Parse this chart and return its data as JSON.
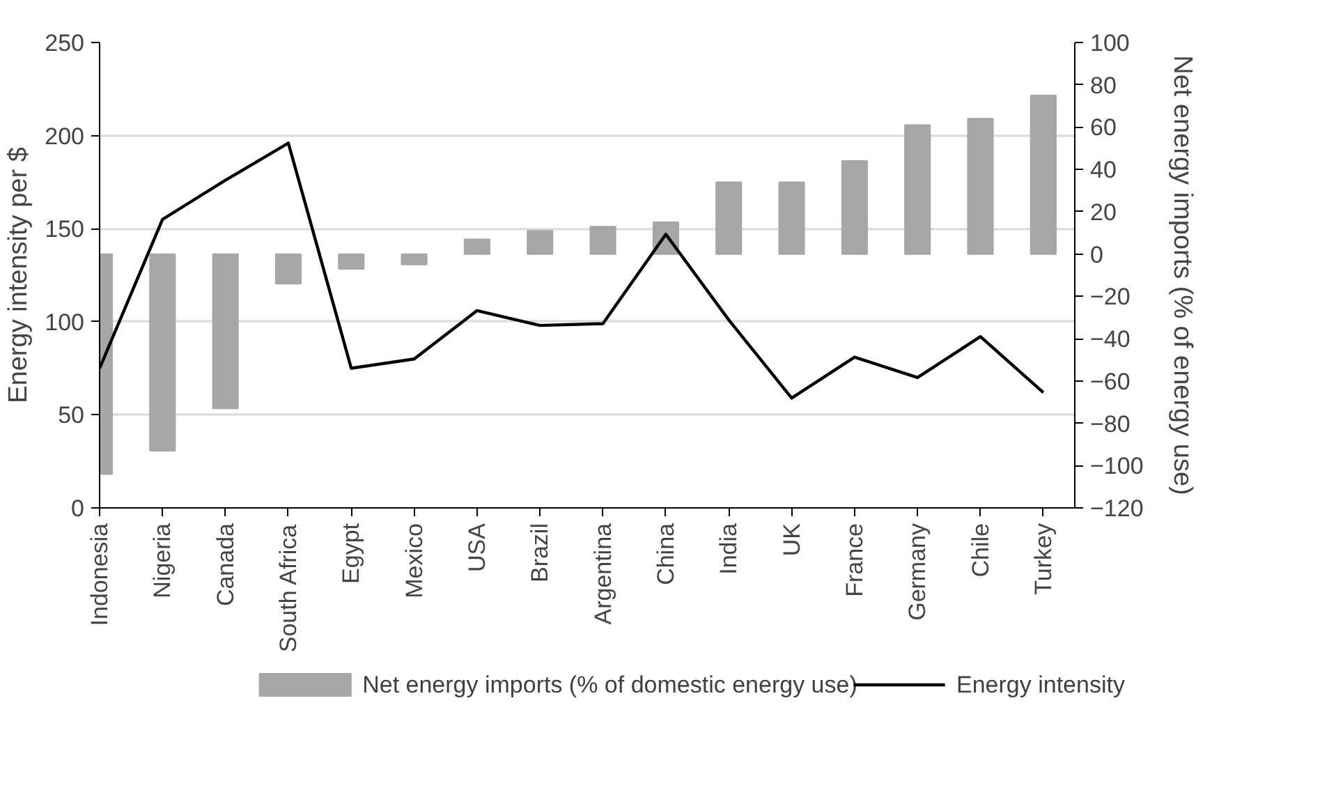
{
  "chart_data": {
    "type": "bar",
    "categories": [
      "Indonesia",
      "Nigeria",
      "Canada",
      "South Africa",
      "Egypt",
      "Mexico",
      "USA",
      "Brazil",
      "Argentina",
      "China",
      "India",
      "UK",
      "France",
      "Germany",
      "Chile",
      "Turkey"
    ],
    "ylabel": "Energy intensity per $",
    "y2label": "Net energy imports (% of energy use)",
    "ylim": [
      0,
      250
    ],
    "yticks": [
      0,
      50,
      100,
      150,
      200,
      250
    ],
    "y2lim": [
      -120,
      100
    ],
    "y2ticks": [
      -120,
      -100,
      -80,
      -60,
      -40,
      -20,
      0,
      20,
      40,
      60,
      80,
      100
    ],
    "grid": "y",
    "legend": "bottom",
    "series": [
      {
        "name": "Net energy imports (% of domestic energy use)",
        "axis": "y2",
        "color": "#a6a6a6",
        "values": [
          -104,
          -93,
          -73,
          -14,
          -7,
          -5,
          7,
          11,
          13,
          15,
          34,
          34,
          44,
          61,
          64,
          75
        ]
      },
      {
        "name": "Energy intensity",
        "type": "line",
        "color": "#000000",
        "values": [
          75,
          155,
          176,
          196,
          75,
          80,
          106,
          98,
          99,
          147,
          101,
          59,
          81,
          70,
          92,
          62
        ]
      }
    ]
  }
}
